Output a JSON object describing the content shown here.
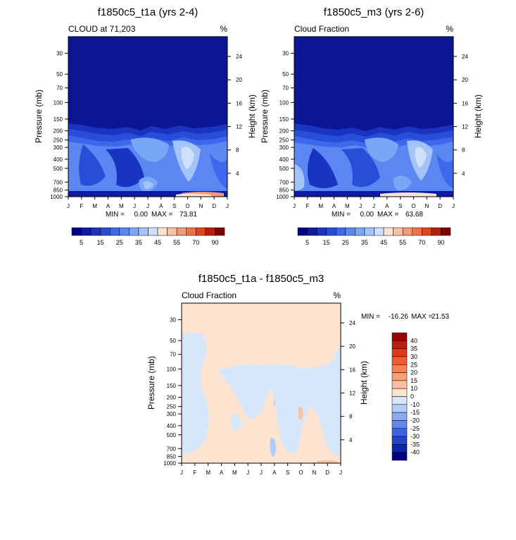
{
  "chart_data": [
    {
      "type": "heatmap",
      "title": "f1850c5_t1a (yrs 2-4)",
      "subtitle_left": "CLOUD at 71,203",
      "subtitle_right": "%",
      "ylabel": "Pressure (mb)",
      "ylabel_right": "Height (km)",
      "x_ticks": [
        "J",
        "F",
        "M",
        "A",
        "M",
        "J",
        "J",
        "A",
        "S",
        "O",
        "N",
        "D",
        "J"
      ],
      "pressure_ticks": [
        30,
        50,
        70,
        100,
        150,
        200,
        250,
        300,
        400,
        500,
        700,
        850,
        1000
      ],
      "height_ticks": [
        24,
        20,
        16,
        12,
        8,
        4
      ],
      "ylim_mb": [
        20,
        1000
      ],
      "stats": {
        "min_label": "MIN =",
        "min": "0.00",
        "max_label": "MAX =",
        "max": "73.81"
      },
      "colorbar": {
        "levels": [
          "5",
          "15",
          "25",
          "35",
          "45",
          "55",
          "70",
          "90"
        ],
        "colors": [
          "#00008c",
          "#0d1aa6",
          "#1a33c0",
          "#284dd9",
          "#3d68eb",
          "#5a87f2",
          "#7aa6f6",
          "#a2c4f8",
          "#cfe0fa",
          "#fde4d1",
          "#f9c0a2",
          "#f59a76",
          "#f07048",
          "#e2451d",
          "#b81e0c",
          "#800000"
        ]
      }
    },
    {
      "type": "heatmap",
      "title": "f1850c5_m3 (yrs 2-6)",
      "subtitle_left": "Cloud Fraction",
      "subtitle_right": "%",
      "ylabel": "Pressure (mb)",
      "ylabel_right": "Height (km)",
      "x_ticks": [
        "J",
        "F",
        "M",
        "A",
        "M",
        "J",
        "J",
        "A",
        "S",
        "O",
        "N",
        "D",
        "J"
      ],
      "pressure_ticks": [
        30,
        50,
        70,
        100,
        150,
        200,
        250,
        300,
        400,
        500,
        700,
        850,
        1000
      ],
      "height_ticks": [
        24,
        20,
        16,
        12,
        8,
        4
      ],
      "ylim_mb": [
        20,
        1000
      ],
      "stats": {
        "min_label": "MIN =",
        "min": "0.00",
        "max_label": "MAX =",
        "max": "63.68"
      },
      "colorbar": {
        "levels": [
          "5",
          "15",
          "25",
          "35",
          "45",
          "55",
          "70",
          "90"
        ],
        "colors": [
          "#00008c",
          "#0d1aa6",
          "#1a33c0",
          "#284dd9",
          "#3d68eb",
          "#5a87f2",
          "#7aa6f6",
          "#a2c4f8",
          "#cfe0fa",
          "#fde4d1",
          "#f9c0a2",
          "#f59a76",
          "#f07048",
          "#e2451d",
          "#b81e0c",
          "#800000"
        ]
      }
    },
    {
      "type": "heatmap",
      "title": "f1850c5_t1a - f1850c5_m3",
      "subtitle_left": "Cloud Fraction",
      "subtitle_right": "%",
      "ylabel": "Pressure (mb)",
      "ylabel_right": "Height (km)",
      "x_ticks": [
        "J",
        "F",
        "M",
        "A",
        "M",
        "J",
        "J",
        "A",
        "S",
        "O",
        "N",
        "D",
        "J"
      ],
      "pressure_ticks": [
        30,
        50,
        70,
        100,
        150,
        200,
        250,
        300,
        400,
        500,
        700,
        850,
        1000
      ],
      "height_ticks": [
        24,
        20,
        16,
        12,
        8,
        4
      ],
      "ylim_mb": [
        20,
        1000
      ],
      "stats": {
        "min_label": "MIN =",
        "min": "-16.26",
        "max_label": "MAX =",
        "max": "21.53"
      },
      "colorbar": {
        "levels": [
          "40",
          "35",
          "30",
          "25",
          "20",
          "15",
          "10",
          "0",
          "-10",
          "-15",
          "-20",
          "-25",
          "-30",
          "-35",
          "-40"
        ],
        "colors": [
          "#9e0000",
          "#c41a0a",
          "#e0361c",
          "#f25a30",
          "#f8804e",
          "#fba072",
          "#fbbfa0",
          "#fde2cc",
          "#d6e6fb",
          "#b4cbf8",
          "#8aaaf4",
          "#6388ef",
          "#3e63e6",
          "#2143cd",
          "#0c25aa",
          "#000080"
        ]
      }
    }
  ]
}
